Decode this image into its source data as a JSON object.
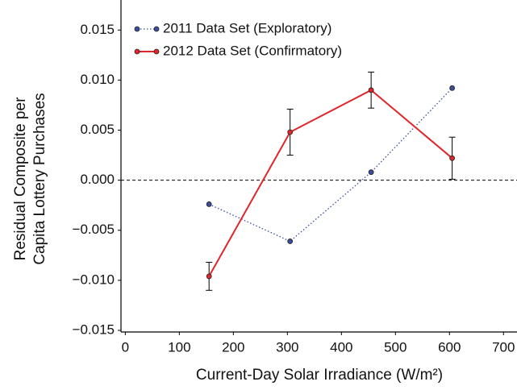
{
  "chart_data": {
    "type": "line",
    "xlabel": "Current-Day Solar Irradiance (W/m²)",
    "ylabel": [
      "Residual Composite per",
      "Capita Lottery Purchases"
    ],
    "xlim": [
      -8,
      725
    ],
    "ylim": [
      -0.015,
      0.018
    ],
    "xticks": [
      0,
      100,
      200,
      300,
      400,
      500,
      600,
      700
    ],
    "yticks": [
      {
        "value": 0.015,
        "label": "0.015"
      },
      {
        "value": 0.01,
        "label": "0.010"
      },
      {
        "value": 0.005,
        "label": "0.005"
      },
      {
        "value": 0,
        "label": "0.000"
      },
      {
        "value": -0.005,
        "label": "−0.005"
      },
      {
        "value": -0.01,
        "label": "−0.010"
      },
      {
        "value": -0.015,
        "label": "−0.015"
      }
    ],
    "reference_line": 0,
    "legend": "upper left",
    "x": [
      155,
      305,
      455,
      605
    ],
    "series": [
      {
        "name": "2011 Data Set (Exploratory)",
        "color": "#3b4e9a",
        "linestyle": "dotted",
        "values": [
          -0.0024,
          -0.0061,
          0.0008,
          0.0092
        ]
      },
      {
        "name": "2012 Data Set (Confirmatory)",
        "color": "#e0262b",
        "linestyle": "solid",
        "values": [
          -0.0096,
          0.0048,
          0.009,
          0.0022
        ],
        "errors": [
          0.0014,
          0.0023,
          0.0018,
          0.0021
        ]
      }
    ]
  }
}
